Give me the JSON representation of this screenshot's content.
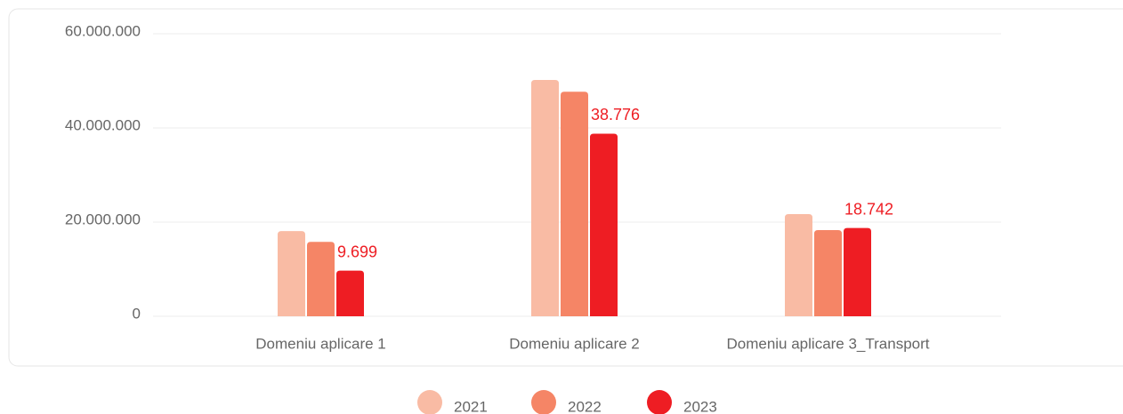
{
  "chart_data": {
    "type": "bar",
    "categories": [
      "Domeniu aplicare 1",
      "Domeniu aplicare 2",
      "Domeniu aplicare 3_Transport"
    ],
    "series": [
      {
        "name": "2021",
        "color": "#f9bba4",
        "values": [
          18100000,
          50200000,
          21700000
        ]
      },
      {
        "name": "2022",
        "color": "#f58566",
        "values": [
          15800000,
          47700000,
          18300000
        ]
      },
      {
        "name": "2023",
        "color": "#ee1d23",
        "values": [
          9699000,
          38776000,
          18742000
        ],
        "value_labels": [
          "9.699",
          "38.776",
          "18.742"
        ]
      }
    ],
    "ylim": [
      0,
      60000000
    ],
    "yticks": [
      0,
      {
        "value": 20000000,
        "label": "20.000.000"
      },
      {
        "value": 40000000,
        "label": "40.000.000"
      },
      {
        "value": 60000000,
        "label": "60.000.000"
      }
    ],
    "grid": true,
    "legend": "bottom"
  }
}
